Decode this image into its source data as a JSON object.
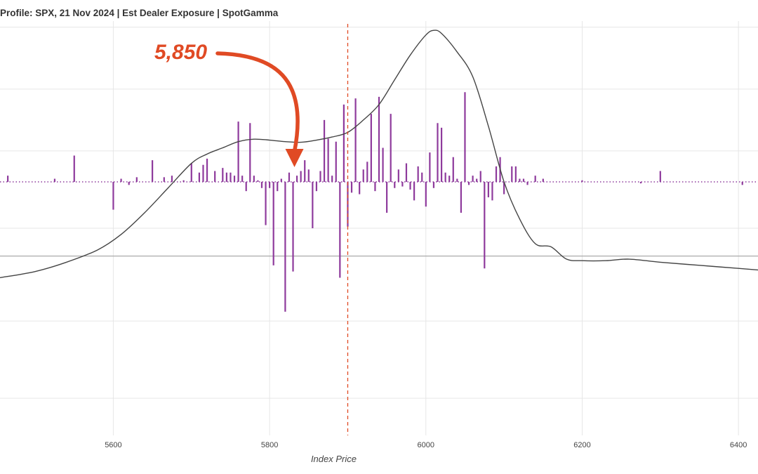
{
  "chart_data": {
    "type": "bar",
    "title": "Profile: SPX, 21 Nov 2024 | Est Dealer Exposure | SpotGamma",
    "xlabel": "Index Price",
    "ylabel": "",
    "xlim": [
      5455,
      6425
    ],
    "ylim": [
      -0.82,
      0.52
    ],
    "x_ticks": [
      5600,
      5800,
      6000,
      6200,
      6400
    ],
    "y_gridlines": [
      0.5,
      0.3,
      0.1,
      -0.15,
      -0.45,
      -0.7
    ],
    "grid": true,
    "colors": {
      "bars": "#8e3a9c",
      "curve": "#444444",
      "marker": "#e04a24",
      "baseline": "#aaaaaa",
      "grid": "#e6e6e6"
    },
    "bars": {
      "x": [
        5465,
        5525,
        5550,
        5600,
        5610,
        5620,
        5630,
        5650,
        5665,
        5675,
        5690,
        5700,
        5710,
        5715,
        5720,
        5730,
        5740,
        5745,
        5750,
        5755,
        5760,
        5765,
        5770,
        5775,
        5780,
        5785,
        5790,
        5795,
        5800,
        5805,
        5810,
        5815,
        5820,
        5825,
        5830,
        5835,
        5840,
        5845,
        5850,
        5855,
        5860,
        5865,
        5870,
        5875,
        5880,
        5885,
        5890,
        5895,
        5900,
        5905,
        5910,
        5915,
        5920,
        5925,
        5930,
        5935,
        5940,
        5945,
        5950,
        5955,
        5960,
        5965,
        5970,
        5975,
        5980,
        5985,
        5990,
        5995,
        6000,
        6005,
        6010,
        6015,
        6020,
        6025,
        6030,
        6035,
        6040,
        6045,
        6050,
        6055,
        6060,
        6065,
        6070,
        6075,
        6080,
        6085,
        6090,
        6095,
        6100,
        6110,
        6115,
        6120,
        6125,
        6130,
        6140,
        6150,
        6200,
        6275,
        6300,
        6405
      ],
      "values": [
        0.02,
        0.01,
        0.085,
        -0.09,
        0.01,
        -0.01,
        0.015,
        0.07,
        0.015,
        0.02,
        0.005,
        0.06,
        0.03,
        0.055,
        0.075,
        0.035,
        0.045,
        0.03,
        0.03,
        0.02,
        0.195,
        0.02,
        -0.03,
        0.19,
        0.02,
        0.005,
        -0.02,
        -0.14,
        -0.02,
        -0.27,
        -0.03,
        0.01,
        -0.42,
        0.03,
        -0.29,
        0.02,
        0.035,
        0.07,
        0.04,
        -0.15,
        -0.03,
        0.035,
        0.2,
        0.14,
        0.02,
        0.13,
        -0.31,
        0.25,
        -0.145,
        -0.035,
        0.27,
        -0.04,
        0.04,
        0.065,
        0.22,
        -0.03,
        0.275,
        0.11,
        -0.1,
        0.22,
        -0.02,
        0.04,
        -0.015,
        0.06,
        -0.025,
        -0.06,
        0.05,
        0.03,
        -0.08,
        0.095,
        -0.02,
        0.19,
        0.175,
        0.03,
        0.02,
        0.08,
        0.01,
        -0.1,
        0.29,
        -0.01,
        0.02,
        0.01,
        0.035,
        -0.28,
        -0.05,
        -0.06,
        0.05,
        0.08,
        -0.04,
        0.05,
        0.05,
        0.01,
        0.01,
        -0.01,
        0.02,
        0.01,
        0.005,
        -0.005,
        0.035,
        -0.01
      ]
    },
    "curve": {
      "x": [
        5455,
        5500,
        5540,
        5580,
        5610,
        5640,
        5670,
        5700,
        5720,
        5740,
        5760,
        5780,
        5800,
        5820,
        5840,
        5860,
        5880,
        5900,
        5920,
        5940,
        5960,
        5980,
        6000,
        6010,
        6020,
        6040,
        6060,
        6080,
        6100,
        6120,
        6140,
        6160,
        6180,
        6200,
        6230,
        6260,
        6300,
        6350,
        6400,
        6425
      ],
      "values": [
        -0.31,
        -0.29,
        -0.26,
        -0.22,
        -0.17,
        -0.1,
        -0.02,
        0.06,
        0.09,
        0.11,
        0.13,
        0.138,
        0.135,
        0.13,
        0.128,
        0.135,
        0.145,
        0.16,
        0.2,
        0.25,
        0.33,
        0.41,
        0.475,
        0.49,
        0.48,
        0.42,
        0.34,
        0.18,
        0.0,
        -0.12,
        -0.2,
        -0.21,
        -0.25,
        -0.255,
        -0.255,
        -0.25,
        -0.26,
        -0.27,
        -0.28,
        -0.285
      ]
    },
    "vline_x": 5900,
    "baseline_y": -0.24,
    "annotation": {
      "text": "5,850",
      "points_to_x": 5830
    }
  }
}
